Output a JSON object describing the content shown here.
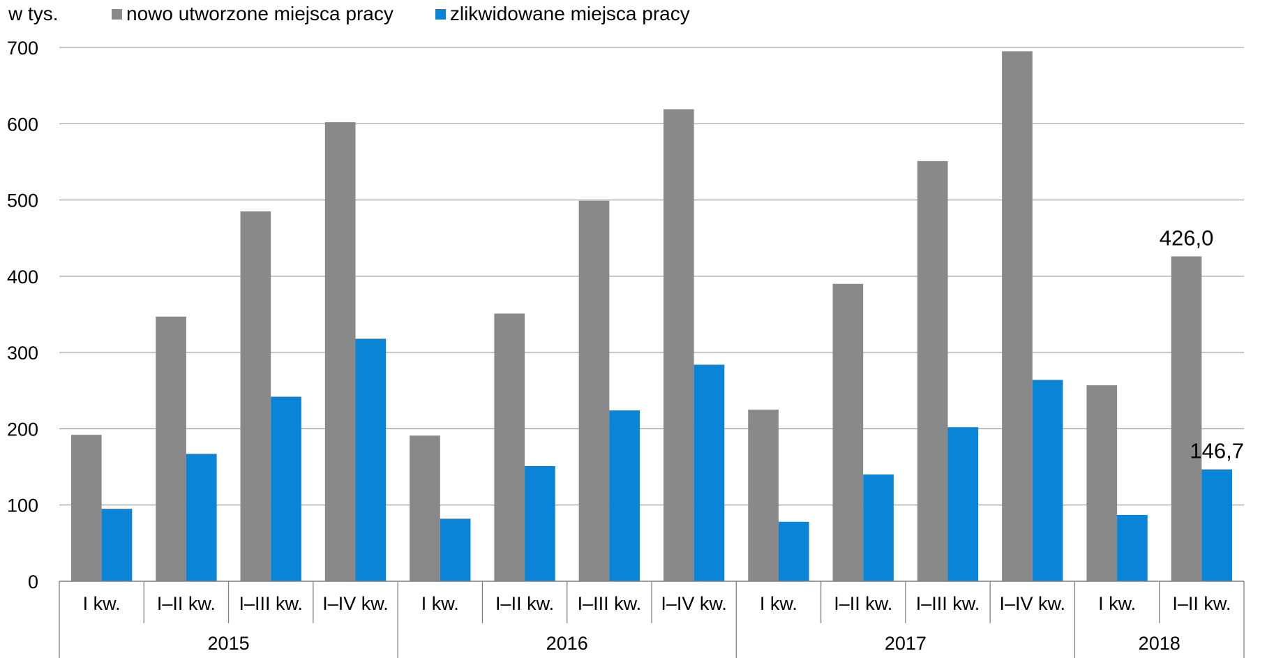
{
  "chart_data": {
    "type": "bar",
    "unit_label": "w tys.",
    "legend_position": "top",
    "ylim": [
      0,
      700
    ],
    "yticks": [
      0,
      100,
      200,
      300,
      400,
      500,
      600,
      700
    ],
    "grid": true,
    "groups": [
      {
        "label": "2015",
        "categories": [
          "I kw.",
          "I–II kw.",
          "I–III kw.",
          "I–IV kw."
        ]
      },
      {
        "label": "2016",
        "categories": [
          "I kw.",
          "I–II kw.",
          "I–III kw.",
          "I–IV kw."
        ]
      },
      {
        "label": "2017",
        "categories": [
          "I kw.",
          "I–II kw.",
          "I–III kw.",
          "I–IV kw."
        ]
      },
      {
        "label": "2018",
        "categories": [
          "I kw.",
          "I–II kw."
        ]
      }
    ],
    "series": [
      {
        "name": "nowo utworzone miejsca pracy",
        "color": "#898989",
        "values": [
          192,
          347,
          485,
          602,
          191,
          351,
          499,
          619,
          225,
          390,
          551,
          695,
          257,
          426.0
        ]
      },
      {
        "name": "zlikwidowane miejsca pracy",
        "color": "#0984d6",
        "values": [
          95,
          167,
          242,
          318,
          82,
          151,
          224,
          284,
          78,
          140,
          202,
          264,
          87,
          146.7
        ]
      }
    ],
    "data_labels": [
      {
        "series": 0,
        "index": 13,
        "text": "426,0"
      },
      {
        "series": 1,
        "index": 13,
        "text": "146,7"
      }
    ]
  }
}
